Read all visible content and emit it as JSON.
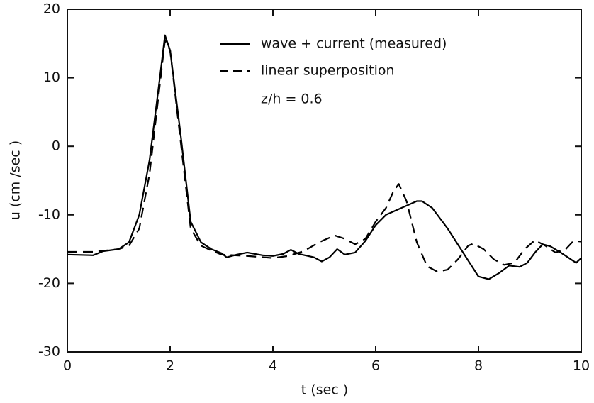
{
  "chart_data": {
    "type": "line",
    "xlabel": "t   (sec )",
    "ylabel": "u  (cm /sec )",
    "annotation": "z/h = 0.6",
    "xlim": [
      0,
      10
    ],
    "xticks": [
      0,
      2,
      4,
      6,
      8,
      10
    ],
    "ylim": [
      -30,
      20
    ],
    "yticks": [
      -30,
      -20,
      -10,
      0,
      10,
      20
    ],
    "series": [
      {
        "name": "wave + current (measured)",
        "color": "#000000",
        "dash": "solid",
        "x": [
          0,
          0.5,
          0.7,
          1.0,
          1.2,
          1.4,
          1.6,
          1.8,
          1.9,
          2.0,
          2.2,
          2.4,
          2.6,
          2.8,
          3.0,
          3.1,
          3.3,
          3.5,
          3.8,
          4.0,
          4.2,
          4.35,
          4.5,
          4.8,
          4.95,
          5.1,
          5.25,
          5.4,
          5.6,
          5.8,
          6.0,
          6.2,
          6.5,
          6.8,
          6.9,
          7.1,
          7.4,
          7.7,
          8.0,
          8.2,
          8.4,
          8.6,
          8.8,
          8.95,
          9.1,
          9.25,
          9.4,
          9.6,
          9.8,
          9.9,
          10
        ],
        "values": [
          -15.8,
          -15.9,
          -15.3,
          -15,
          -14,
          -10,
          -2,
          10,
          16.2,
          14,
          2,
          -11,
          -14,
          -15,
          -15.6,
          -16.2,
          -15.8,
          -15.5,
          -15.9,
          -16,
          -15.7,
          -15.1,
          -15.7,
          -16.2,
          -16.8,
          -16.2,
          -15,
          -15.8,
          -15.5,
          -13.8,
          -11.5,
          -10,
          -9,
          -8,
          -8,
          -9,
          -12,
          -15.5,
          -19,
          -19.4,
          -18.5,
          -17.4,
          -17.6,
          -17,
          -15.5,
          -14.3,
          -14.6,
          -15.5,
          -16.5,
          -17,
          -16.3
        ]
      },
      {
        "name": "linear superposition",
        "color": "#000000",
        "dash": "dashed",
        "x": [
          0,
          0.5,
          1.0,
          1.2,
          1.4,
          1.6,
          1.8,
          1.9,
          2.0,
          2.2,
          2.4,
          2.6,
          2.8,
          3.0,
          3.5,
          4.0,
          4.3,
          4.6,
          4.9,
          5.2,
          5.4,
          5.6,
          5.8,
          6.0,
          6.2,
          6.35,
          6.45,
          6.6,
          6.8,
          7.0,
          7.2,
          7.4,
          7.6,
          7.8,
          7.9,
          8.1,
          8.3,
          8.5,
          8.7,
          8.9,
          9.1,
          9.3,
          9.5,
          9.7,
          9.85,
          10
        ],
        "values": [
          -15.4,
          -15.4,
          -15,
          -14.5,
          -12,
          -4,
          9,
          15.5,
          14,
          1,
          -12,
          -14.5,
          -15.2,
          -15.8,
          -16,
          -16.3,
          -16,
          -15.3,
          -14,
          -13,
          -13.5,
          -14.3,
          -13.5,
          -11,
          -9,
          -6.5,
          -5.5,
          -8,
          -14,
          -17.5,
          -18.3,
          -18,
          -16.5,
          -14.5,
          -14.2,
          -15,
          -16.5,
          -17.3,
          -17,
          -15,
          -13.7,
          -14.5,
          -15.5,
          -15,
          -13.8,
          -13.9
        ]
      }
    ]
  }
}
